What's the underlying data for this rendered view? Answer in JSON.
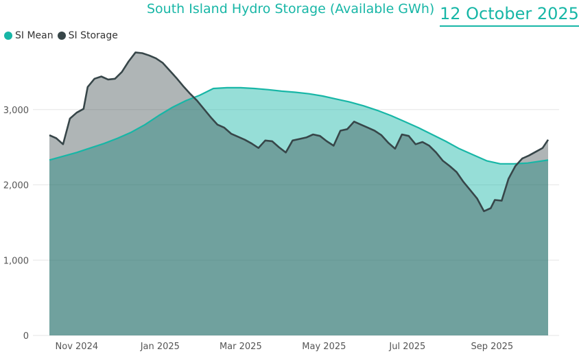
{
  "header": {
    "title": "South Island Hydro Storage (Available GWh)",
    "date": "12 October 2025"
  },
  "legend": [
    {
      "label": "SI Mean",
      "color": "#17b6a6"
    },
    {
      "label": "SI Storage",
      "color": "#374649"
    }
  ],
  "chart_data": {
    "type": "area",
    "title": "South Island Hydro Storage (Available GWh)",
    "xlabel": "",
    "ylabel": "",
    "x_range": [
      "2024-10-12",
      "2025-10-12"
    ],
    "ylim": [
      0,
      3900
    ],
    "y_ticks": [
      0,
      1000,
      2000,
      3000
    ],
    "y_tick_labels": [
      "0",
      "1,000",
      "2,000",
      "3,000"
    ],
    "x_ticks": [
      "2024-11-01",
      "2025-01-01",
      "2025-03-01",
      "2025-05-01",
      "2025-07-01",
      "2025-09-01"
    ],
    "x_tick_labels": [
      "Nov 2024",
      "Jan 2025",
      "Mar 2025",
      "May 2025",
      "Jul 2025",
      "Sep 2025"
    ],
    "grid": true,
    "legend_position": "top-left",
    "series": [
      {
        "name": "SI Mean",
        "color": "#17b6a6",
        "fill": "#8fe1d8",
        "points": [
          [
            "2024-10-12",
            2330
          ],
          [
            "2024-10-22",
            2380
          ],
          [
            "2024-11-01",
            2430
          ],
          [
            "2024-11-11",
            2490
          ],
          [
            "2024-11-21",
            2550
          ],
          [
            "2024-12-01",
            2620
          ],
          [
            "2024-12-11",
            2700
          ],
          [
            "2024-12-21",
            2800
          ],
          [
            "2024-12-31",
            2920
          ],
          [
            "2025-01-10",
            3030
          ],
          [
            "2025-01-20",
            3120
          ],
          [
            "2025-01-30",
            3190
          ],
          [
            "2025-02-09",
            3280
          ],
          [
            "2025-02-19",
            3290
          ],
          [
            "2025-03-01",
            3290
          ],
          [
            "2025-03-11",
            3280
          ],
          [
            "2025-03-21",
            3265
          ],
          [
            "2025-03-31",
            3245
          ],
          [
            "2025-04-10",
            3230
          ],
          [
            "2025-04-20",
            3210
          ],
          [
            "2025-04-30",
            3180
          ],
          [
            "2025-05-10",
            3140
          ],
          [
            "2025-05-20",
            3100
          ],
          [
            "2025-05-30",
            3050
          ],
          [
            "2025-06-09",
            2990
          ],
          [
            "2025-06-19",
            2920
          ],
          [
            "2025-06-29",
            2840
          ],
          [
            "2025-07-09",
            2760
          ],
          [
            "2025-07-19",
            2670
          ],
          [
            "2025-07-29",
            2580
          ],
          [
            "2025-08-08",
            2480
          ],
          [
            "2025-08-18",
            2400
          ],
          [
            "2025-08-28",
            2320
          ],
          [
            "2025-09-07",
            2280
          ],
          [
            "2025-09-17",
            2280
          ],
          [
            "2025-09-27",
            2290
          ],
          [
            "2025-10-12",
            2330
          ]
        ]
      },
      {
        "name": "SI Storage",
        "color": "#374649",
        "fill": "#b2b6b7",
        "points": [
          [
            "2024-10-12",
            2660
          ],
          [
            "2024-10-17",
            2620
          ],
          [
            "2024-10-22",
            2540
          ],
          [
            "2024-10-27",
            2880
          ],
          [
            "2024-11-01",
            2960
          ],
          [
            "2024-11-06",
            3010
          ],
          [
            "2024-11-09",
            3300
          ],
          [
            "2024-11-14",
            3410
          ],
          [
            "2024-11-19",
            3440
          ],
          [
            "2024-11-24",
            3400
          ],
          [
            "2024-11-29",
            3410
          ],
          [
            "2024-12-04",
            3500
          ],
          [
            "2024-12-09",
            3640
          ],
          [
            "2024-12-14",
            3760
          ],
          [
            "2024-12-19",
            3750
          ],
          [
            "2024-12-24",
            3720
          ],
          [
            "2024-12-29",
            3680
          ],
          [
            "2025-01-03",
            3620
          ],
          [
            "2025-01-08",
            3520
          ],
          [
            "2025-01-13",
            3420
          ],
          [
            "2025-01-18",
            3310
          ],
          [
            "2025-01-23",
            3210
          ],
          [
            "2025-01-28",
            3120
          ],
          [
            "2025-02-02",
            3010
          ],
          [
            "2025-02-07",
            2900
          ],
          [
            "2025-02-12",
            2800
          ],
          [
            "2025-02-17",
            2760
          ],
          [
            "2025-02-22",
            2680
          ],
          [
            "2025-02-27",
            2640
          ],
          [
            "2025-03-04",
            2600
          ],
          [
            "2025-03-09",
            2550
          ],
          [
            "2025-03-14",
            2490
          ],
          [
            "2025-03-19",
            2590
          ],
          [
            "2025-03-24",
            2580
          ],
          [
            "2025-03-29",
            2500
          ],
          [
            "2025-04-03",
            2430
          ],
          [
            "2025-04-08",
            2590
          ],
          [
            "2025-04-13",
            2610
          ],
          [
            "2025-04-18",
            2630
          ],
          [
            "2025-04-23",
            2670
          ],
          [
            "2025-04-28",
            2650
          ],
          [
            "2025-05-03",
            2580
          ],
          [
            "2025-05-08",
            2520
          ],
          [
            "2025-05-13",
            2720
          ],
          [
            "2025-05-18",
            2740
          ],
          [
            "2025-05-23",
            2840
          ],
          [
            "2025-05-28",
            2800
          ],
          [
            "2025-06-02",
            2760
          ],
          [
            "2025-06-07",
            2720
          ],
          [
            "2025-06-12",
            2660
          ],
          [
            "2025-06-17",
            2560
          ],
          [
            "2025-06-22",
            2480
          ],
          [
            "2025-06-27",
            2670
          ],
          [
            "2025-07-02",
            2650
          ],
          [
            "2025-07-07",
            2540
          ],
          [
            "2025-07-12",
            2570
          ],
          [
            "2025-07-17",
            2520
          ],
          [
            "2025-07-22",
            2430
          ],
          [
            "2025-07-27",
            2320
          ],
          [
            "2025-08-01",
            2250
          ],
          [
            "2025-08-06",
            2170
          ],
          [
            "2025-08-11",
            2040
          ],
          [
            "2025-08-16",
            1930
          ],
          [
            "2025-08-21",
            1820
          ],
          [
            "2025-08-26",
            1650
          ],
          [
            "2025-08-31",
            1690
          ],
          [
            "2025-09-03",
            1800
          ],
          [
            "2025-09-08",
            1790
          ],
          [
            "2025-09-13",
            2080
          ],
          [
            "2025-09-18",
            2250
          ],
          [
            "2025-09-23",
            2350
          ],
          [
            "2025-09-28",
            2390
          ],
          [
            "2025-10-03",
            2440
          ],
          [
            "2025-10-08",
            2490
          ],
          [
            "2025-10-12",
            2600
          ]
        ]
      }
    ]
  }
}
